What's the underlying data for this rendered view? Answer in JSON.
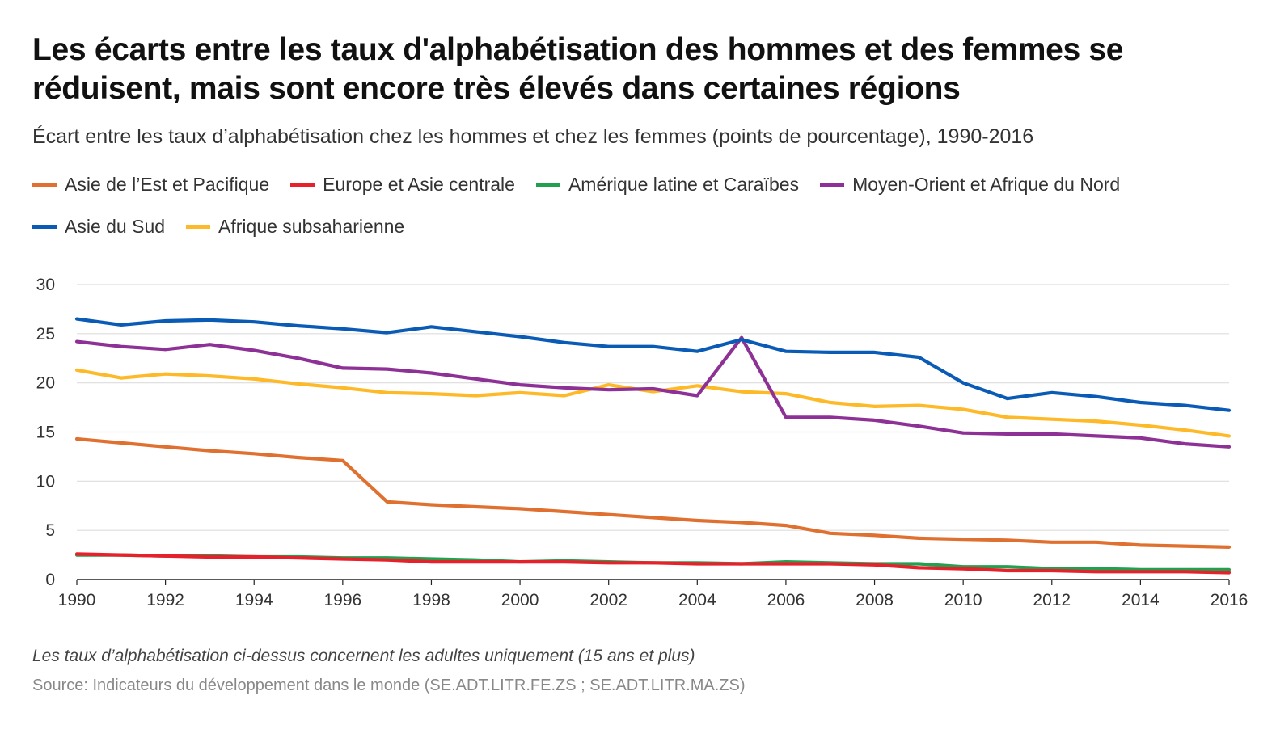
{
  "header": {
    "title": "Les écarts entre les taux d'alphabétisation des hommes et des femmes se réduisent, mais sont encore très élevés dans certaines régions",
    "subtitle": "Écart entre les taux d’alphabétisation chez les hommes et chez les femmes (points de pourcentage), 1990-2016"
  },
  "footer": {
    "note": "Les taux d’alphabétisation ci-dessus concernent les adultes uniquement (15 ans et plus)",
    "source": "Source: Indicateurs du développement dans le monde (SE.ADT.LITR.FE.ZS ; SE.ADT.LITR.MA.ZS)"
  },
  "chart_data": {
    "type": "line",
    "title": "Les écarts entre les taux d'alphabétisation des hommes et des femmes se réduisent, mais sont encore très élevés dans certaines régions",
    "subtitle": "Écart entre les taux d’alphabétisation chez les hommes et chez les femmes (points de pourcentage), 1990-2016",
    "xlabel": "",
    "ylabel": "",
    "xlim": [
      1990,
      2016
    ],
    "ylim": [
      0,
      30
    ],
    "x_ticks": [
      1990,
      1992,
      1994,
      1996,
      1998,
      2000,
      2002,
      2004,
      2006,
      2008,
      2010,
      2012,
      2014,
      2016
    ],
    "y_ticks": [
      0,
      5,
      10,
      15,
      20,
      25,
      30
    ],
    "grid": true,
    "legend_position": "top",
    "x": [
      1990,
      1991,
      1992,
      1993,
      1994,
      1995,
      1996,
      1997,
      1998,
      1999,
      2000,
      2001,
      2002,
      2003,
      2004,
      2005,
      2006,
      2007,
      2008,
      2009,
      2010,
      2011,
      2012,
      2013,
      2014,
      2015,
      2016
    ],
    "series": [
      {
        "name": "Asie de l’Est et Pacifique",
        "color": "#E07030",
        "values": [
          14.3,
          13.9,
          13.5,
          13.1,
          12.8,
          12.4,
          12.1,
          7.9,
          7.6,
          7.4,
          7.2,
          6.9,
          6.6,
          6.3,
          6.0,
          5.8,
          5.5,
          4.7,
          4.5,
          4.2,
          4.1,
          4.0,
          3.8,
          3.8,
          3.5,
          3.4,
          3.3
        ]
      },
      {
        "name": "Europe et Asie centrale",
        "color": "#E8202C",
        "values": [
          2.6,
          2.5,
          2.4,
          2.3,
          2.3,
          2.2,
          2.1,
          2.0,
          1.8,
          1.8,
          1.8,
          1.8,
          1.7,
          1.7,
          1.6,
          1.6,
          1.6,
          1.6,
          1.5,
          1.2,
          1.1,
          0.9,
          0.9,
          0.8,
          0.8,
          0.8,
          0.7
        ]
      },
      {
        "name": "Amérique latine et Caraïbes",
        "color": "#22A050",
        "values": [
          2.5,
          2.5,
          2.4,
          2.4,
          2.3,
          2.3,
          2.2,
          2.2,
          2.1,
          2.0,
          1.8,
          1.9,
          1.8,
          1.7,
          1.7,
          1.6,
          1.8,
          1.7,
          1.6,
          1.6,
          1.3,
          1.3,
          1.1,
          1.1,
          1.0,
          1.0,
          1.0
        ]
      },
      {
        "name": "Moyen-Orient et Afrique du Nord",
        "color": "#8E3196",
        "values": [
          24.2,
          23.7,
          23.4,
          23.9,
          23.3,
          22.5,
          21.5,
          21.4,
          21.0,
          20.4,
          19.8,
          19.5,
          19.3,
          19.4,
          18.7,
          24.6,
          16.5,
          16.5,
          16.2,
          15.6,
          14.9,
          14.8,
          14.8,
          14.6,
          14.4,
          13.8,
          13.5
        ]
      },
      {
        "name": "Asie du Sud",
        "color": "#0A5BB5",
        "values": [
          26.5,
          25.9,
          26.3,
          26.4,
          26.2,
          25.8,
          25.5,
          25.1,
          25.7,
          25.2,
          24.7,
          24.1,
          23.7,
          23.7,
          23.2,
          24.4,
          23.2,
          23.1,
          23.1,
          22.6,
          20.0,
          18.4,
          19.0,
          18.6,
          18.0,
          17.7,
          17.2
        ]
      },
      {
        "name": "Afrique subsaharienne",
        "color": "#FDB927",
        "values": [
          21.3,
          20.5,
          20.9,
          20.7,
          20.4,
          19.9,
          19.5,
          19.0,
          18.9,
          18.7,
          19.0,
          18.7,
          19.8,
          19.1,
          19.7,
          19.1,
          18.9,
          18.0,
          17.6,
          17.7,
          17.3,
          16.5,
          16.3,
          16.1,
          15.7,
          15.2,
          14.6
        ]
      }
    ]
  }
}
